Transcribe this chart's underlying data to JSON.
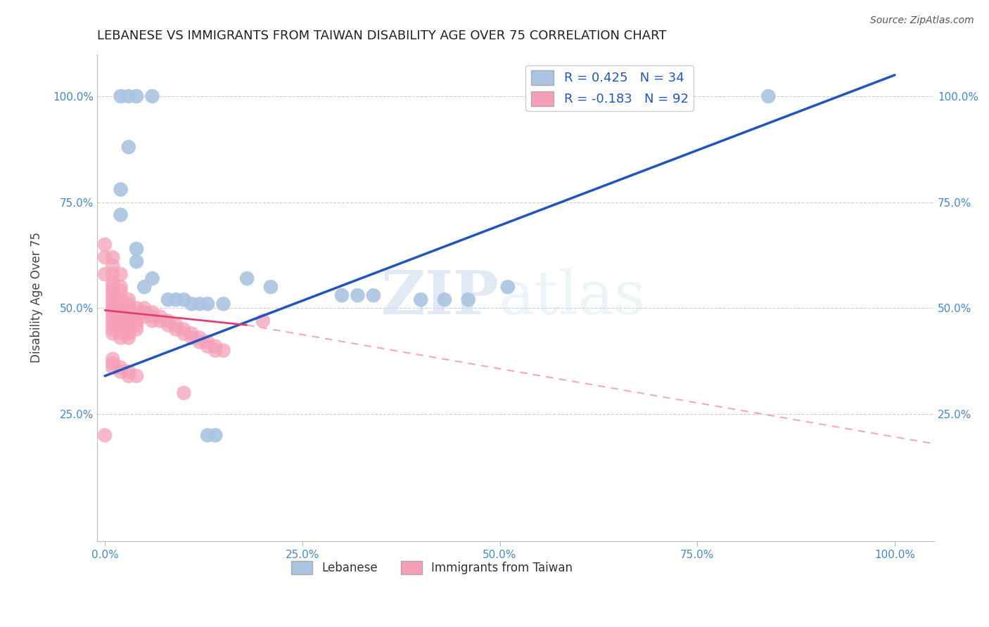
{
  "title": "LEBANESE VS IMMIGRANTS FROM TAIWAN DISABILITY AGE OVER 75 CORRELATION CHART",
  "source": "Source: ZipAtlas.com",
  "ylabel": "Disability Age Over 75",
  "watermark_zip": "ZIP",
  "watermark_atlas": "atlas",
  "legend_r1": "R = 0.425",
  "legend_n1": "N = 34",
  "legend_r2": "R = -0.183",
  "legend_n2": "N = 92",
  "blue_color": "#aac4e2",
  "pink_color": "#f5a0b8",
  "blue_line_color": "#2255bb",
  "pink_solid_color": "#e04070",
  "pink_dashed_color": "#f0a8bc",
  "xtick_vals": [
    0,
    25,
    50,
    75,
    100
  ],
  "xtick_labels": [
    "0.0%",
    "25.0%",
    "50.0%",
    "75.0%",
    "100.0%"
  ],
  "ytick_vals_left": [
    25,
    50,
    75,
    100
  ],
  "ytick_labels_left": [
    "25.0%",
    "50.0%",
    "75.0%",
    "100.0%"
  ],
  "ytick_vals_right": [
    25,
    50,
    75,
    100
  ],
  "ytick_labels_right": [
    "25.0%",
    "50.0%",
    "75.0%",
    "100.0%"
  ],
  "xlim": [
    -1,
    105
  ],
  "ylim": [
    -5,
    110
  ],
  "blue_scatter": [
    [
      2,
      100
    ],
    [
      3,
      100
    ],
    [
      4,
      100
    ],
    [
      6,
      100
    ],
    [
      3,
      88
    ],
    [
      2,
      78
    ],
    [
      2,
      72
    ],
    [
      4,
      64
    ],
    [
      4,
      61
    ],
    [
      6,
      57
    ],
    [
      5,
      55
    ],
    [
      8,
      52
    ],
    [
      9,
      52
    ],
    [
      10,
      52
    ],
    [
      11,
      51
    ],
    [
      12,
      51
    ],
    [
      13,
      51
    ],
    [
      15,
      51
    ],
    [
      18,
      57
    ],
    [
      21,
      55
    ],
    [
      30,
      53
    ],
    [
      32,
      53
    ],
    [
      34,
      53
    ],
    [
      40,
      52
    ],
    [
      43,
      52
    ],
    [
      46,
      52
    ],
    [
      51,
      55
    ],
    [
      84,
      100
    ],
    [
      13,
      20
    ],
    [
      14,
      20
    ]
  ],
  "pink_scatter": [
    [
      0,
      65
    ],
    [
      0,
      62
    ],
    [
      0,
      58
    ],
    [
      1,
      60
    ],
    [
      1,
      58
    ],
    [
      1,
      56
    ],
    [
      1,
      55
    ],
    [
      1,
      54
    ],
    [
      1,
      53
    ],
    [
      1,
      52
    ],
    [
      1,
      51
    ],
    [
      1,
      50
    ],
    [
      1,
      50
    ],
    [
      1,
      49
    ],
    [
      1,
      48
    ],
    [
      1,
      47
    ],
    [
      1,
      46
    ],
    [
      1,
      45
    ],
    [
      1,
      44
    ],
    [
      2,
      55
    ],
    [
      2,
      54
    ],
    [
      2,
      52
    ],
    [
      2,
      51
    ],
    [
      2,
      50
    ],
    [
      2,
      50
    ],
    [
      2,
      49
    ],
    [
      2,
      48
    ],
    [
      2,
      47
    ],
    [
      2,
      46
    ],
    [
      2,
      45
    ],
    [
      2,
      44
    ],
    [
      2,
      43
    ],
    [
      3,
      52
    ],
    [
      3,
      51
    ],
    [
      3,
      50
    ],
    [
      3,
      49
    ],
    [
      3,
      48
    ],
    [
      3,
      47
    ],
    [
      3,
      46
    ],
    [
      3,
      45
    ],
    [
      3,
      44
    ],
    [
      3,
      43
    ],
    [
      4,
      50
    ],
    [
      4,
      49
    ],
    [
      4,
      48
    ],
    [
      4,
      47
    ],
    [
      4,
      46
    ],
    [
      4,
      45
    ],
    [
      5,
      50
    ],
    [
      5,
      49
    ],
    [
      5,
      48
    ],
    [
      6,
      49
    ],
    [
      6,
      48
    ],
    [
      6,
      47
    ],
    [
      7,
      48
    ],
    [
      7,
      47
    ],
    [
      8,
      47
    ],
    [
      8,
      46
    ],
    [
      9,
      46
    ],
    [
      9,
      45
    ],
    [
      10,
      45
    ],
    [
      10,
      44
    ],
    [
      11,
      44
    ],
    [
      11,
      43
    ],
    [
      12,
      43
    ],
    [
      12,
      42
    ],
    [
      13,
      42
    ],
    [
      13,
      41
    ],
    [
      14,
      41
    ],
    [
      14,
      40
    ],
    [
      15,
      40
    ],
    [
      1,
      38
    ],
    [
      1,
      37
    ],
    [
      1,
      36
    ],
    [
      2,
      36
    ],
    [
      2,
      35
    ],
    [
      3,
      35
    ],
    [
      3,
      34
    ],
    [
      4,
      34
    ],
    [
      0,
      20
    ],
    [
      10,
      30
    ],
    [
      20,
      47
    ],
    [
      1,
      62
    ],
    [
      2,
      58
    ]
  ],
  "blue_line": [
    [
      0,
      34
    ],
    [
      100,
      105
    ]
  ],
  "pink_solid_line": [
    [
      0,
      49.5
    ],
    [
      18,
      46
    ]
  ],
  "pink_dashed_line": [
    [
      18,
      46
    ],
    [
      105,
      18
    ]
  ]
}
